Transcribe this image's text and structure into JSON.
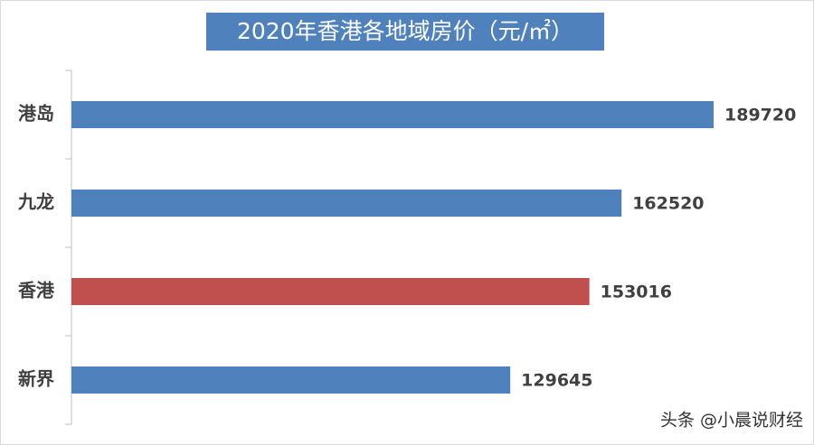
{
  "chart_data": {
    "type": "bar",
    "orientation": "horizontal",
    "title": "2020年香港各地域房价（元/㎡）",
    "categories": [
      "港岛",
      "九龙",
      "香港",
      "新界"
    ],
    "values": [
      189720,
      162520,
      153016,
      129645
    ],
    "colors": [
      "#4f81bd",
      "#4f81bd",
      "#c0504d",
      "#4f81bd"
    ],
    "watermark": "头条 @小晨说财经"
  }
}
